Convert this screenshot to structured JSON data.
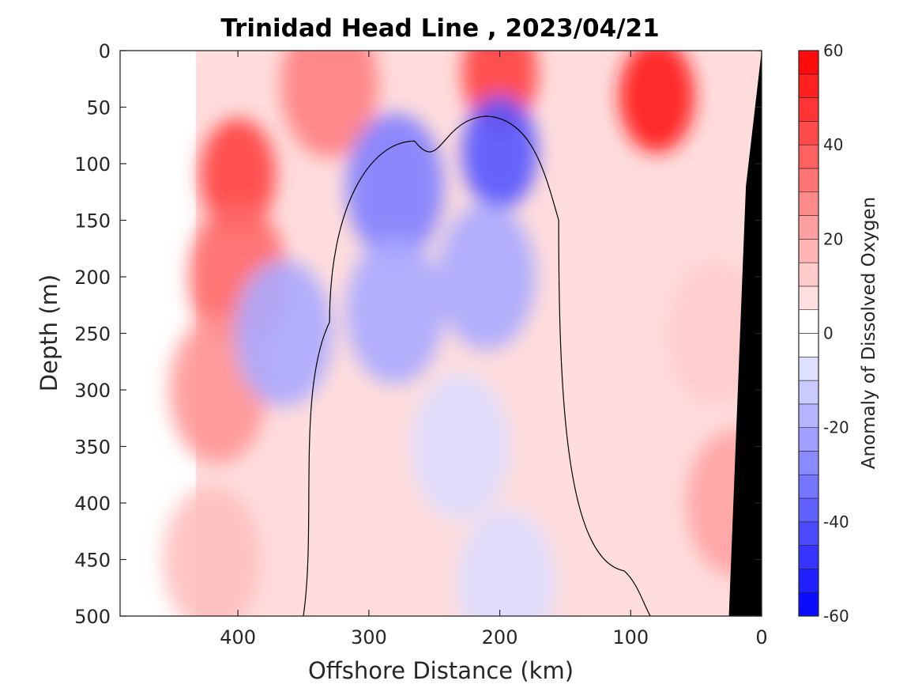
{
  "chart_data": {
    "type": "heatmap",
    "title": "Trinidad Head Line , 2023/04/21",
    "xlabel": "Offshore Distance (km)",
    "ylabel": "Depth (m)",
    "colorbar_label": "Anomaly of Dissolved Oxygen",
    "xlim": [
      490,
      0
    ],
    "ylim": [
      500,
      0
    ],
    "x_ticks": [
      400,
      300,
      200,
      100,
      0
    ],
    "y_ticks": [
      0,
      50,
      100,
      150,
      200,
      250,
      300,
      350,
      400,
      450,
      500
    ],
    "colorbar_range": [
      -60,
      60
    ],
    "colorbar_ticks": [
      60,
      40,
      20,
      0,
      -20,
      -40,
      -60
    ],
    "colorbar_levels": [
      -60,
      -55,
      -50,
      -45,
      -40,
      -35,
      -30,
      -25,
      -20,
      -15,
      -10,
      -5,
      0,
      5,
      10,
      15,
      20,
      25,
      30,
      35,
      40,
      45,
      50,
      55,
      60
    ],
    "colormap": {
      "negative": "#0000ff",
      "zero": "#ffffff",
      "positive": "#ff0000"
    },
    "data_x_extent_km": [
      0,
      432
    ],
    "contour_zero_line": true,
    "bathymetry_mask_color": "#000000",
    "features": [
      {
        "x": 400,
        "y": 110,
        "anomaly": 45
      },
      {
        "x": 400,
        "y": 200,
        "anomaly": 35
      },
      {
        "x": 415,
        "y": 300,
        "anomaly": 25
      },
      {
        "x": 420,
        "y": 450,
        "anomaly": 15
      },
      {
        "x": 330,
        "y": 30,
        "anomaly": 30
      },
      {
        "x": 200,
        "y": 20,
        "anomaly": 45
      },
      {
        "x": 80,
        "y": 40,
        "anomaly": 55
      },
      {
        "x": 35,
        "y": 250,
        "anomaly": 12
      },
      {
        "x": 20,
        "y": 400,
        "anomaly": 22
      },
      {
        "x": 280,
        "y": 120,
        "anomaly": -30
      },
      {
        "x": 280,
        "y": 230,
        "anomaly": -20
      },
      {
        "x": 200,
        "y": 90,
        "anomaly": -40
      },
      {
        "x": 210,
        "y": 200,
        "anomaly": -20
      },
      {
        "x": 365,
        "y": 250,
        "anomaly": -20
      },
      {
        "x": 230,
        "y": 350,
        "anomaly": -8
      },
      {
        "x": 195,
        "y": 470,
        "anomaly": -8
      }
    ]
  }
}
